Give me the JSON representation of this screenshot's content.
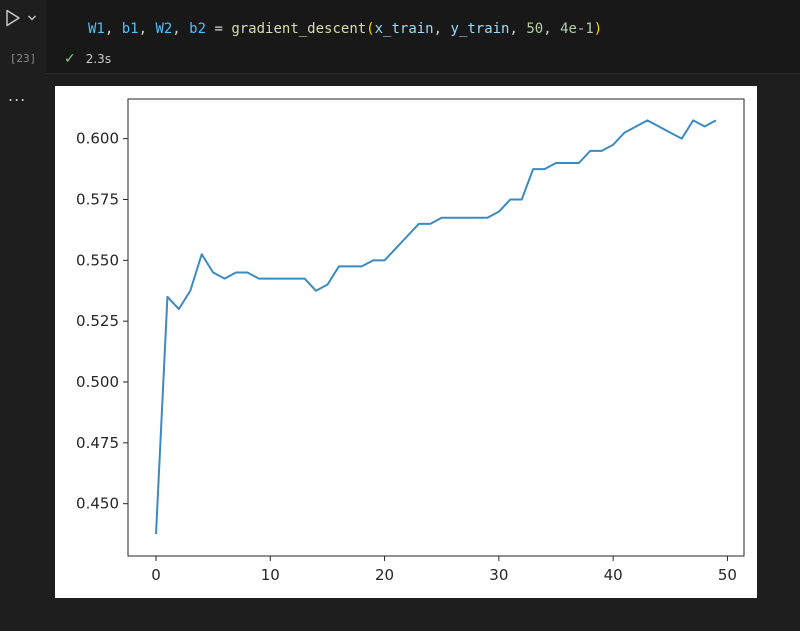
{
  "cell": {
    "execution_count": "[23]",
    "code_tokens": [
      {
        "text": "W1",
        "cls": "tk-var"
      },
      {
        "text": ", ",
        "cls": "tk-op"
      },
      {
        "text": "b1",
        "cls": "tk-var"
      },
      {
        "text": ", ",
        "cls": "tk-op"
      },
      {
        "text": "W2",
        "cls": "tk-var"
      },
      {
        "text": ", ",
        "cls": "tk-op"
      },
      {
        "text": "b2",
        "cls": "tk-var"
      },
      {
        "text": " = ",
        "cls": "tk-op"
      },
      {
        "text": "gradient_descent",
        "cls": "tk-fn"
      },
      {
        "text": "(",
        "cls": "tk-paren"
      },
      {
        "text": "x_train",
        "cls": "tk-arg"
      },
      {
        "text": ", ",
        "cls": "tk-op"
      },
      {
        "text": "y_train",
        "cls": "tk-arg"
      },
      {
        "text": ", ",
        "cls": "tk-op"
      },
      {
        "text": "50",
        "cls": "tk-num"
      },
      {
        "text": ", ",
        "cls": "tk-op"
      },
      {
        "text": "4e-1",
        "cls": "tk-num"
      },
      {
        "text": ")",
        "cls": "tk-paren"
      }
    ],
    "status_icon": "check-icon",
    "duration": "2.3s"
  },
  "output": {
    "menu_label": "..."
  },
  "colors": {
    "line": "#3b8bc2",
    "success": "#89d185"
  },
  "chart_data": {
    "type": "line",
    "title": "",
    "xlabel": "",
    "ylabel": "",
    "xlim": [
      -2.45,
      51.45
    ],
    "ylim": [
      0.4285,
      0.6163
    ],
    "xticks": [
      0,
      10,
      20,
      30,
      40,
      50
    ],
    "yticks": [
      0.45,
      0.475,
      0.5,
      0.525,
      0.55,
      0.575,
      0.6
    ],
    "ytick_labels": [
      "0.450",
      "0.475",
      "0.500",
      "0.525",
      "0.550",
      "0.575",
      "0.600"
    ],
    "grid": false,
    "x": [
      0,
      1,
      2,
      3,
      4,
      5,
      6,
      7,
      8,
      9,
      10,
      11,
      12,
      13,
      14,
      15,
      16,
      17,
      18,
      19,
      20,
      21,
      22,
      23,
      24,
      25,
      26,
      27,
      28,
      29,
      30,
      31,
      32,
      33,
      34,
      35,
      36,
      37,
      38,
      39,
      40,
      41,
      42,
      43,
      44,
      45,
      46,
      47,
      48,
      49
    ],
    "series": [
      {
        "values": [
          0.4375,
          0.535,
          0.53,
          0.5375,
          0.5525,
          0.545,
          0.5425,
          0.545,
          0.545,
          0.5425,
          0.5425,
          0.5425,
          0.5425,
          0.5425,
          0.5375,
          0.54,
          0.5475,
          0.5475,
          0.5475,
          0.55,
          0.55,
          0.555,
          0.56,
          0.565,
          0.565,
          0.5675,
          0.5675,
          0.5675,
          0.5675,
          0.5675,
          0.57,
          0.575,
          0.575,
          0.5875,
          0.5875,
          0.59,
          0.59,
          0.59,
          0.595,
          0.595,
          0.5975,
          0.6025,
          0.605,
          0.6075,
          0.605,
          0.6025,
          0.6,
          0.6075,
          0.605,
          0.6075
        ]
      }
    ]
  }
}
